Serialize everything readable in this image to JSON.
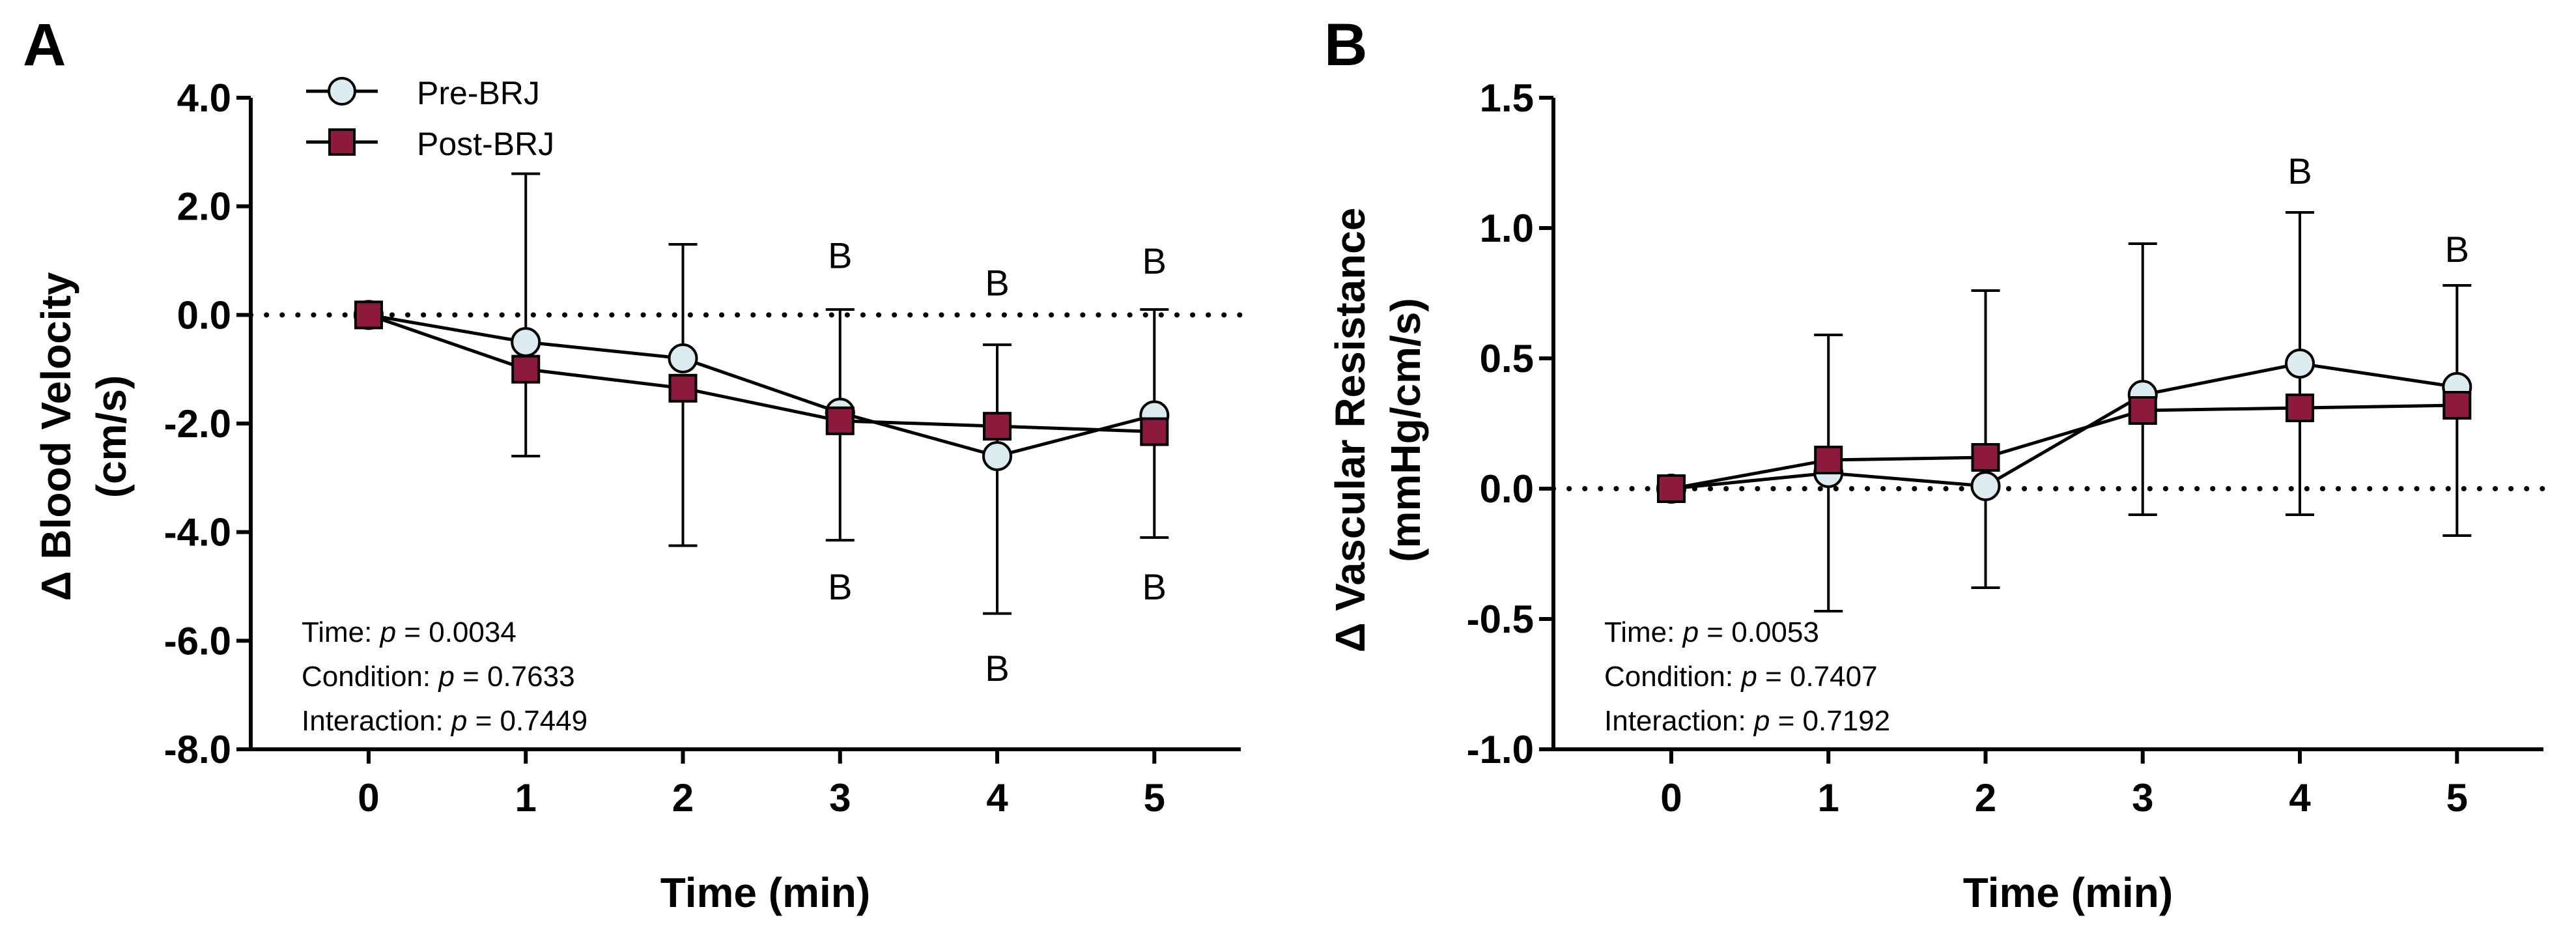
{
  "colors": {
    "pre_fill": "#dcebf0",
    "post_fill": "#8b1a3d",
    "stroke": "#000000",
    "background": "#ffffff"
  },
  "chart_data": [
    {
      "panel_label": "A",
      "type": "line",
      "xlabel": "Time (min)",
      "ylabel_line1": "Δ Blood Velocity",
      "ylabel_line2": "(cm/s)",
      "x": [
        0,
        1,
        2,
        3,
        4,
        5
      ],
      "x_tick_labels": [
        "0",
        "1",
        "2",
        "3",
        "4",
        "5"
      ],
      "xlim": [
        -0.75,
        5.55
      ],
      "ylim": [
        -8.0,
        4.0
      ],
      "y_ticks": [
        4.0,
        2.0,
        0.0,
        -2.0,
        -4.0,
        -6.0,
        -8.0
      ],
      "y_tick_labels": [
        "4.0",
        "2.0",
        "0.0",
        "-2.0",
        "-4.0",
        "-6.0",
        "-8.0"
      ],
      "reference_line": 0,
      "legend_location": "top-left",
      "series": [
        {
          "name": "Pre-BRJ",
          "marker": "circle",
          "values": [
            0.0,
            -0.5,
            -0.8,
            -1.8,
            -2.6,
            -1.85
          ],
          "error_dir": "up",
          "error": [
            0.0,
            3.1,
            2.1,
            1.9,
            2.05,
            1.95
          ]
        },
        {
          "name": "Post-BRJ",
          "marker": "square",
          "values": [
            0.0,
            -1.0,
            -1.35,
            -1.95,
            -2.05,
            -2.15
          ],
          "error_dir": "down",
          "error": [
            0.0,
            1.6,
            2.9,
            2.2,
            3.45,
            1.95
          ]
        }
      ],
      "annotations": [
        {
          "text": "B",
          "x": 3,
          "y": 1.1
        },
        {
          "text": "B",
          "x": 4,
          "y": 0.6
        },
        {
          "text": "B",
          "x": 5,
          "y": 1.0
        },
        {
          "text": "B",
          "x": 3,
          "y": -5.0
        },
        {
          "text": "B",
          "x": 4,
          "y": -6.5
        },
        {
          "text": "B",
          "x": 5,
          "y": -5.0
        }
      ],
      "stats": [
        {
          "label": "Time: ",
          "p": "p",
          "value": " = 0.0034"
        },
        {
          "label": "Condition: ",
          "p": "p",
          "value": " = 0.7633"
        },
        {
          "label": "Interaction: ",
          "p": "p",
          "value": " = 0.7449"
        }
      ]
    },
    {
      "panel_label": "B",
      "type": "line",
      "xlabel": "Time (min)",
      "ylabel_line1": "Δ Vascular Resistance",
      "ylabel_line2": "(mmHg/cm/s)",
      "x": [
        0,
        1,
        2,
        3,
        4,
        5
      ],
      "x_tick_labels": [
        "0",
        "1",
        "2",
        "3",
        "4",
        "5"
      ],
      "xlim": [
        -0.75,
        5.55
      ],
      "ylim": [
        -1.0,
        1.5
      ],
      "y_ticks": [
        1.5,
        1.0,
        0.5,
        0.0,
        -0.5,
        -1.0
      ],
      "y_tick_labels": [
        "1.5",
        "1.0",
        "0.5",
        "0.0",
        "-0.5",
        "-1.0"
      ],
      "reference_line": 0,
      "series": [
        {
          "name": "Pre-BRJ",
          "marker": "circle",
          "values": [
            0.0,
            0.06,
            0.01,
            0.36,
            0.48,
            0.39
          ],
          "error_dir": "down",
          "error": [
            0.0,
            0.53,
            0.39,
            0.46,
            0.58,
            0.57
          ]
        },
        {
          "name": "Post-BRJ",
          "marker": "square",
          "values": [
            0.0,
            0.11,
            0.12,
            0.3,
            0.31,
            0.32
          ],
          "error_dir": "up",
          "error": [
            0.0,
            0.48,
            0.64,
            0.64,
            0.75,
            0.46
          ]
        }
      ],
      "annotations": [
        {
          "text": "B",
          "x": 4,
          "y": 1.22
        },
        {
          "text": "B",
          "x": 5,
          "y": 0.92
        }
      ],
      "stats": [
        {
          "label": "Time: ",
          "p": "p",
          "value": " = 0.0053"
        },
        {
          "label": "Condition: ",
          "p": "p",
          "value": " = 0.7407"
        },
        {
          "label": "Interaction: ",
          "p": "p",
          "value": " = 0.7192"
        }
      ]
    }
  ]
}
